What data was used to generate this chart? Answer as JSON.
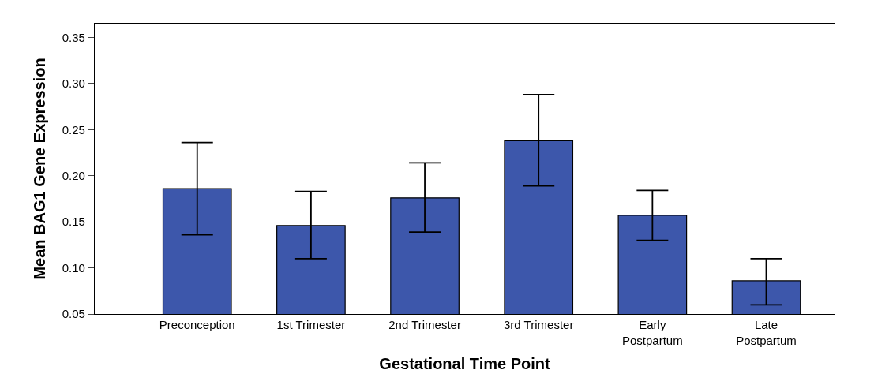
{
  "chart_data": {
    "type": "bar",
    "xlabel": "Gestational Time Point",
    "ylabel": "Mean BAG1 Gene Expression",
    "categories": [
      "Preconception",
      "1st Trimester",
      "2nd Trimester",
      "3rd Trimester",
      "Early\nPostpartum",
      "Late\nPostpartum"
    ],
    "values": [
      0.186,
      0.146,
      0.176,
      0.238,
      0.157,
      0.086
    ],
    "errors": [
      [
        0.136,
        0.236
      ],
      [
        0.11,
        0.183
      ],
      [
        0.139,
        0.214
      ],
      [
        0.189,
        0.288
      ],
      [
        0.13,
        0.184
      ],
      [
        0.06,
        0.11
      ]
    ],
    "color": "#3d57ab",
    "ylim": [
      0.05,
      0.365
    ],
    "yticks": [
      0.05,
      {
        "value": 0.1,
        "label": "0.10"
      },
      0.15,
      {
        "value": 0.2,
        "label": "0.20"
      },
      0.25,
      {
        "value": 0.3,
        "label": "0.30"
      },
      0.35
    ]
  }
}
